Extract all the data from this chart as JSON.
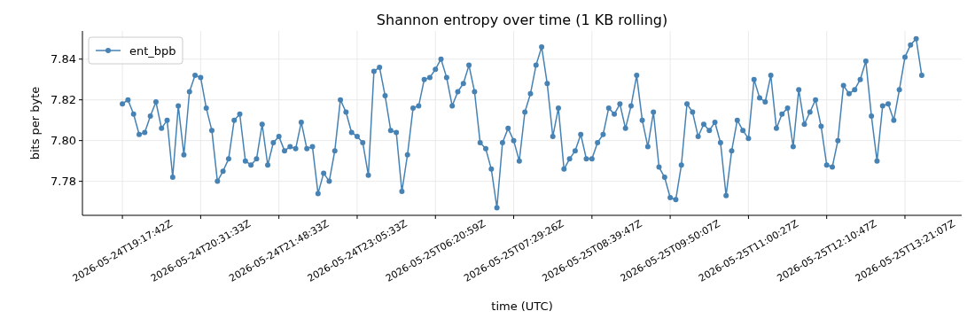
{
  "chart_data": {
    "type": "line",
    "title": "Shannon entropy over time (1 KB rolling)",
    "xlabel": "time (UTC)",
    "ylabel": "bits per byte",
    "categories": [
      "2026-05-24T19:17:42Z",
      null,
      null,
      null,
      null,
      null,
      null,
      null,
      null,
      null,
      null,
      null,
      null,
      null,
      "2026-05-24T20:31:33Z",
      null,
      null,
      null,
      null,
      null,
      null,
      null,
      null,
      null,
      null,
      null,
      null,
      null,
      "2026-05-24T21:48:33Z",
      null,
      null,
      null,
      null,
      null,
      null,
      null,
      null,
      null,
      null,
      null,
      null,
      null,
      "2026-05-24T23:05:33Z",
      null,
      null,
      null,
      null,
      null,
      null,
      null,
      null,
      null,
      null,
      null,
      null,
      null,
      "2026-05-25T06:20:59Z",
      null,
      null,
      null,
      null,
      null,
      null,
      null,
      null,
      null,
      null,
      null,
      null,
      null,
      "2026-05-25T07:29:26Z",
      null,
      null,
      null,
      null,
      null,
      null,
      null,
      null,
      null,
      null,
      null,
      null,
      null,
      "2026-05-25T08:39:47Z",
      null,
      null,
      null,
      null,
      null,
      null,
      null,
      null,
      null,
      null,
      null,
      null,
      null,
      "2026-05-25T09:50:07Z",
      null,
      null,
      null,
      null,
      null,
      null,
      null,
      null,
      null,
      null,
      null,
      null,
      null,
      "2026-05-25T11:00:27Z",
      null,
      null,
      null,
      null,
      null,
      null,
      null,
      null,
      null,
      null,
      null,
      null,
      null,
      "2026-05-25T12:10:47Z",
      null,
      null,
      null,
      null,
      null,
      null,
      null,
      null,
      null,
      null,
      null,
      null,
      null,
      "2026-05-25T13:21:07Z",
      null,
      null,
      null
    ],
    "series": [
      {
        "name": "ent_bpb",
        "color": "#4682b4",
        "values": [
          7.818,
          7.82,
          7.813,
          7.803,
          7.804,
          7.812,
          7.819,
          7.806,
          7.81,
          7.782,
          7.817,
          7.793,
          7.824,
          7.832,
          7.831,
          7.816,
          7.805,
          7.78,
          7.785,
          7.791,
          7.81,
          7.813,
          7.79,
          7.788,
          7.791,
          7.808,
          7.788,
          7.799,
          7.802,
          7.795,
          7.797,
          7.796,
          7.809,
          7.796,
          7.797,
          7.774,
          7.784,
          7.78,
          7.795,
          7.82,
          7.814,
          7.804,
          7.802,
          7.799,
          7.783,
          7.834,
          7.836,
          7.822,
          7.805,
          7.804,
          7.775,
          7.793,
          7.816,
          7.817,
          7.83,
          7.831,
          7.835,
          7.84,
          7.831,
          7.817,
          7.824,
          7.828,
          7.837,
          7.824,
          7.799,
          7.796,
          7.786,
          7.767,
          7.799,
          7.806,
          7.8,
          7.79,
          7.814,
          7.823,
          7.837,
          7.846,
          7.828,
          7.802,
          7.816,
          7.786,
          7.791,
          7.795,
          7.803,
          7.791,
          7.791,
          7.799,
          7.803,
          7.816,
          7.813,
          7.818,
          7.806,
          7.817,
          7.832,
          7.81,
          7.797,
          7.814,
          7.787,
          7.782,
          7.772,
          7.771,
          7.788,
          7.818,
          7.814,
          7.802,
          7.808,
          7.805,
          7.809,
          7.799,
          7.773,
          7.795,
          7.81,
          7.805,
          7.801,
          7.83,
          7.821,
          7.819,
          7.832,
          7.806,
          7.813,
          7.816,
          7.797,
          7.825,
          7.808,
          7.814,
          7.82,
          7.807,
          7.788,
          7.787,
          7.8,
          7.827,
          7.823,
          7.825,
          7.83,
          7.839,
          7.812,
          7.79,
          7.817,
          7.818,
          7.81,
          7.825,
          7.841,
          7.847,
          7.85,
          7.832
        ]
      }
    ],
    "ylim": [
      7.7633,
      7.8538
    ],
    "yticks": [
      {
        "value": 7.78,
        "label": "7.78"
      },
      {
        "value": 7.8,
        "label": "7.80"
      },
      {
        "value": 7.82,
        "label": "7.82"
      },
      {
        "value": 7.84,
        "label": "7.84"
      }
    ],
    "grid": true,
    "legend": "top left",
    "marker": "circle",
    "line_style": "solid"
  }
}
